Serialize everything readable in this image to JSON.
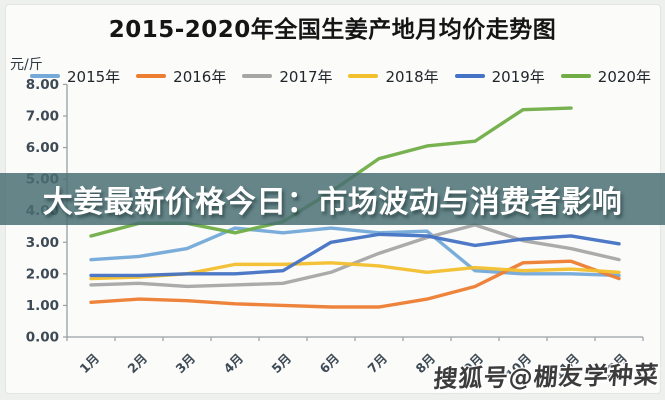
{
  "banner": {
    "text": "大姜最新价格今日：市场波动与消费者影响"
  },
  "watermark": {
    "text": "搜狐号@棚友学种菜"
  },
  "chart_data": {
    "type": "line",
    "title": "2015-2020年全国生姜产地月均价走势图",
    "unit_label": "元/斤",
    "xlabel": "",
    "ylabel": "元/斤",
    "ylim": [
      0,
      8
    ],
    "grid": false,
    "legend_position": "top",
    "y_ticks": [
      "8.00",
      "7.00",
      "6.00",
      "5.00",
      "4.00",
      "3.00",
      "2.00",
      "1.00",
      "0.00"
    ],
    "categories": [
      "1月",
      "2月",
      "3月",
      "4月",
      "5月",
      "6月",
      "7月",
      "8月",
      "9月",
      "10月",
      "11月",
      "12月"
    ],
    "series": [
      {
        "name": "2015年",
        "color": "#74A9D8",
        "values": [
          2.45,
          2.55,
          2.8,
          3.45,
          3.3,
          3.45,
          3.3,
          3.35,
          2.1,
          2.0,
          2.0,
          1.95
        ]
      },
      {
        "name": "2016年",
        "color": "#ED7D31",
        "values": [
          1.1,
          1.2,
          1.15,
          1.05,
          1.0,
          0.95,
          0.95,
          1.2,
          1.6,
          2.35,
          2.4,
          1.85
        ]
      },
      {
        "name": "2017年",
        "color": "#A6A6A6",
        "values": [
          1.65,
          1.7,
          1.6,
          1.65,
          1.7,
          2.05,
          2.65,
          3.15,
          3.55,
          3.05,
          2.8,
          2.45
        ]
      },
      {
        "name": "2018年",
        "color": "#F2BF2D",
        "values": [
          1.85,
          1.9,
          2.0,
          2.3,
          2.3,
          2.35,
          2.25,
          2.05,
          2.2,
          2.1,
          2.15,
          2.05
        ]
      },
      {
        "name": "2019年",
        "color": "#4472C4",
        "values": [
          1.95,
          1.95,
          2.0,
          2.0,
          2.1,
          3.0,
          3.25,
          3.2,
          2.9,
          3.1,
          3.2,
          2.95
        ]
      },
      {
        "name": "2020年",
        "color": "#70AD47",
        "values": [
          3.2,
          3.6,
          3.6,
          3.3,
          3.65,
          4.6,
          5.65,
          6.05,
          6.2,
          7.2,
          7.25
        ]
      }
    ]
  }
}
